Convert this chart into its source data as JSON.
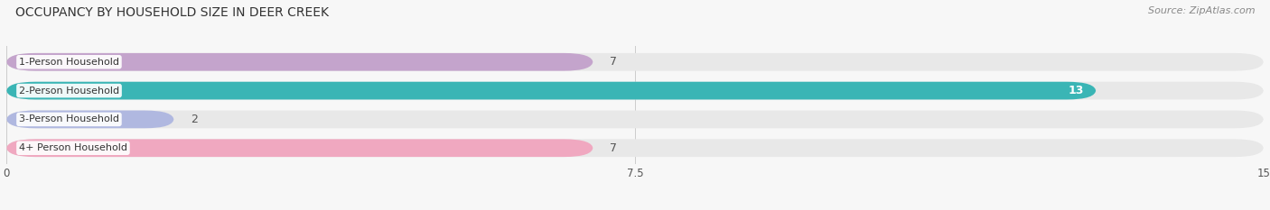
{
  "title": "OCCUPANCY BY HOUSEHOLD SIZE IN DEER CREEK",
  "source": "Source: ZipAtlas.com",
  "categories": [
    "1-Person Household",
    "2-Person Household",
    "3-Person Household",
    "4+ Person Household"
  ],
  "values": [
    7,
    13,
    2,
    7
  ],
  "bar_colors": [
    "#c4a4cc",
    "#3ab5b5",
    "#b0b8e0",
    "#f0a8c0"
  ],
  "bar_labels": [
    "7",
    "13",
    "2",
    "7"
  ],
  "label_colors": [
    "#555555",
    "#ffffff",
    "#555555",
    "#555555"
  ],
  "label_inside": [
    false,
    true,
    false,
    false
  ],
  "xlim": [
    0,
    15
  ],
  "xticks": [
    0,
    7.5,
    15
  ],
  "bg_color": "#f7f7f7",
  "bar_bg_color": "#e8e8e8",
  "title_fontsize": 10,
  "source_fontsize": 8,
  "label_fontsize": 9,
  "category_fontsize": 8,
  "bar_height": 0.62,
  "bar_gap": 1.0
}
